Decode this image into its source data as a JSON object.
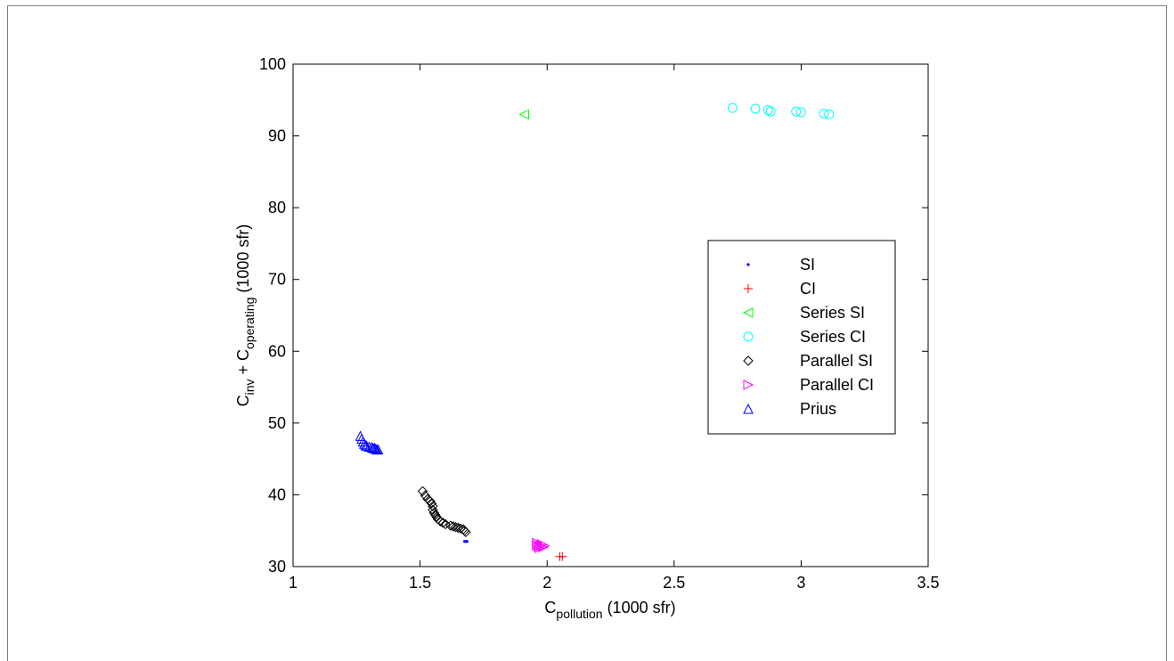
{
  "chart_data": {
    "type": "scatter",
    "xlabel": {
      "main": "C",
      "sub": "pollution",
      "suffix": " (1000 sfr)"
    },
    "ylabel": {
      "p1": "C",
      "s1": "inv",
      "p2": " + C",
      "s2": "operating",
      "suffix": " (1000 sfr)"
    },
    "xlim": [
      1,
      3.5
    ],
    "ylim": [
      30,
      100
    ],
    "xticks": [
      "1",
      "1.5",
      "2",
      "2.5",
      "3",
      "3.5"
    ],
    "yticks": [
      "30",
      "40",
      "50",
      "60",
      "70",
      "80",
      "90",
      "100"
    ],
    "grid": false,
    "legend_position": "right-center",
    "series": [
      {
        "name": "SI",
        "marker": "dot",
        "color": "#0000ff",
        "points": [
          [
            1.675,
            33.5
          ],
          [
            1.68,
            33.5
          ],
          [
            1.685,
            33.5
          ]
        ]
      },
      {
        "name": "CI",
        "marker": "plus",
        "color": "#ff0000",
        "points": [
          [
            2.05,
            31.4
          ],
          [
            2.06,
            31.4
          ]
        ]
      },
      {
        "name": "Series SI",
        "marker": "triangle-left",
        "color": "#00ff00",
        "points": [
          [
            1.91,
            93.0
          ]
        ]
      },
      {
        "name": "Series CI",
        "marker": "circle",
        "color": "#00ffff",
        "points": [
          [
            2.73,
            93.9
          ],
          [
            2.82,
            93.8
          ],
          [
            2.87,
            93.6
          ],
          [
            2.88,
            93.4
          ],
          [
            2.98,
            93.4
          ],
          [
            3.0,
            93.3
          ],
          [
            3.09,
            93.1
          ],
          [
            3.11,
            93.0
          ]
        ]
      },
      {
        "name": "Parallel SI",
        "marker": "diamond",
        "color": "#000000",
        "points": [
          [
            1.51,
            40.5
          ],
          [
            1.52,
            39.9
          ],
          [
            1.53,
            39.4
          ],
          [
            1.54,
            39.1
          ],
          [
            1.545,
            38.8
          ],
          [
            1.55,
            38.4
          ],
          [
            1.55,
            37.9
          ],
          [
            1.555,
            37.5
          ],
          [
            1.56,
            37.2
          ],
          [
            1.565,
            36.9
          ],
          [
            1.57,
            36.6
          ],
          [
            1.58,
            36.3
          ],
          [
            1.59,
            36.1
          ],
          [
            1.6,
            35.9
          ],
          [
            1.62,
            35.7
          ],
          [
            1.63,
            35.6
          ],
          [
            1.64,
            35.5
          ],
          [
            1.65,
            35.4
          ],
          [
            1.66,
            35.3
          ],
          [
            1.67,
            35.2
          ],
          [
            1.675,
            35.0
          ],
          [
            1.68,
            34.8
          ]
        ]
      },
      {
        "name": "Parallel CI",
        "marker": "triangle-right",
        "color": "#ff00ff",
        "points": [
          [
            1.96,
            33.3
          ],
          [
            1.96,
            33.0
          ],
          [
            1.965,
            32.8
          ],
          [
            1.97,
            32.6
          ],
          [
            1.975,
            32.9
          ],
          [
            1.98,
            33.1
          ],
          [
            1.985,
            32.7
          ],
          [
            1.99,
            32.9
          ]
        ]
      },
      {
        "name": "Prius",
        "marker": "triangle-up",
        "color": "#0000ff",
        "points": [
          [
            1.265,
            48.2
          ],
          [
            1.27,
            47.8
          ],
          [
            1.275,
            47.4
          ],
          [
            1.28,
            47.1
          ],
          [
            1.285,
            46.9
          ],
          [
            1.29,
            46.8
          ],
          [
            1.3,
            46.7
          ],
          [
            1.31,
            46.6
          ],
          [
            1.315,
            46.5
          ],
          [
            1.32,
            46.5
          ],
          [
            1.325,
            46.4
          ],
          [
            1.33,
            46.3
          ],
          [
            1.335,
            46.3
          ]
        ]
      }
    ]
  }
}
